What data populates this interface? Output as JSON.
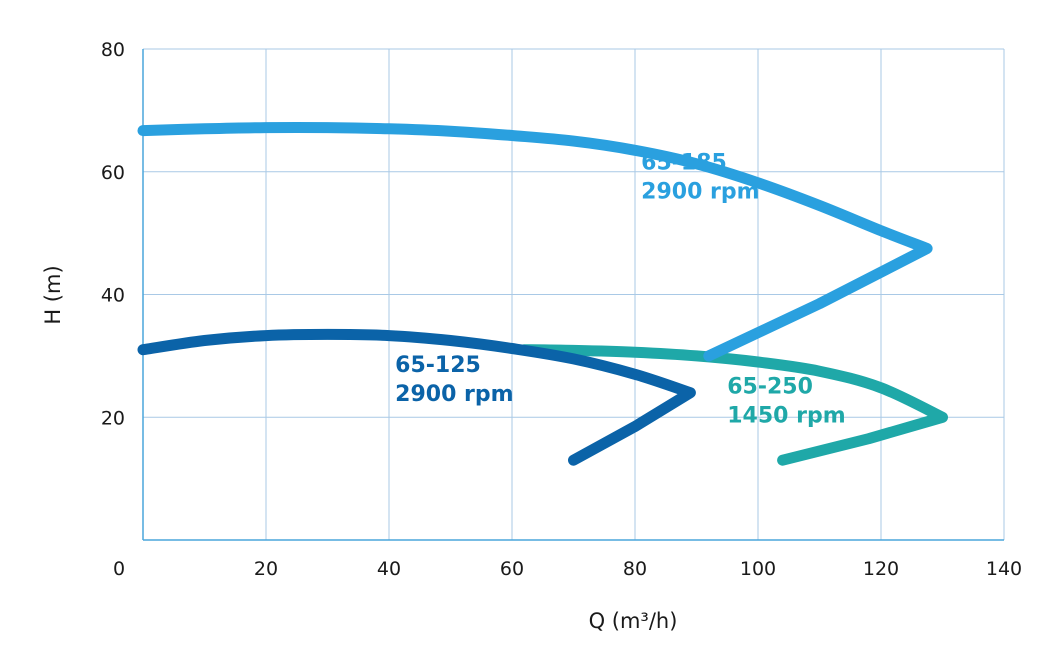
{
  "chart_data": {
    "type": "line",
    "title": "",
    "xlabel": "Q (m³/h)",
    "ylabel": "H (m)",
    "xlim": [
      0,
      140
    ],
    "ylim": [
      0,
      80
    ],
    "x_ticks": [
      "0",
      "20",
      "40",
      "60",
      "80",
      "100",
      "120",
      "140"
    ],
    "y_ticks": [
      "20",
      "40",
      "60",
      "80"
    ],
    "grid": true,
    "series": [
      {
        "name": "65-185",
        "name_line2": "2900 rpm",
        "color": "#2aa0df",
        "points": [
          [
            0,
            66.7
          ],
          [
            10,
            67.0
          ],
          [
            20,
            67.2
          ],
          [
            30,
            67.2
          ],
          [
            40,
            67.0
          ],
          [
            50,
            66.6
          ],
          [
            60,
            65.9
          ],
          [
            70,
            65.0
          ],
          [
            80,
            63.5
          ],
          [
            90,
            61.3
          ],
          [
            100,
            58.2
          ],
          [
            110,
            54.5
          ],
          [
            120,
            50.4
          ],
          [
            127.5,
            47.5
          ],
          [
            110,
            38.5
          ],
          [
            92,
            30.0
          ]
        ]
      },
      {
        "name": "65-125",
        "name_line2": "2900 rpm",
        "color": "#0b63a8",
        "points": [
          [
            0,
            31.0
          ],
          [
            10,
            32.5
          ],
          [
            20,
            33.3
          ],
          [
            30,
            33.5
          ],
          [
            40,
            33.3
          ],
          [
            50,
            32.5
          ],
          [
            60,
            31.2
          ],
          [
            70,
            29.5
          ],
          [
            80,
            27.0
          ],
          [
            89,
            24.0
          ],
          [
            80,
            18.5
          ],
          [
            70,
            13.0
          ]
        ]
      },
      {
        "name": "65-250",
        "name_line2": "1450 rpm",
        "color": "#1fa8a8",
        "points": [
          [
            62,
            31.0
          ],
          [
            70,
            30.9
          ],
          [
            80,
            30.6
          ],
          [
            90,
            30.0
          ],
          [
            100,
            29.0
          ],
          [
            110,
            27.5
          ],
          [
            120,
            24.8
          ],
          [
            130,
            20.0
          ],
          [
            118,
            16.5
          ],
          [
            104,
            13.0
          ]
        ]
      }
    ],
    "annotations": [
      {
        "series": "65-185",
        "x": 81,
        "y": 56
      },
      {
        "series": "65-125",
        "x": 41,
        "y": 23
      },
      {
        "series": "65-250",
        "x": 95,
        "y": 19.5
      }
    ]
  }
}
